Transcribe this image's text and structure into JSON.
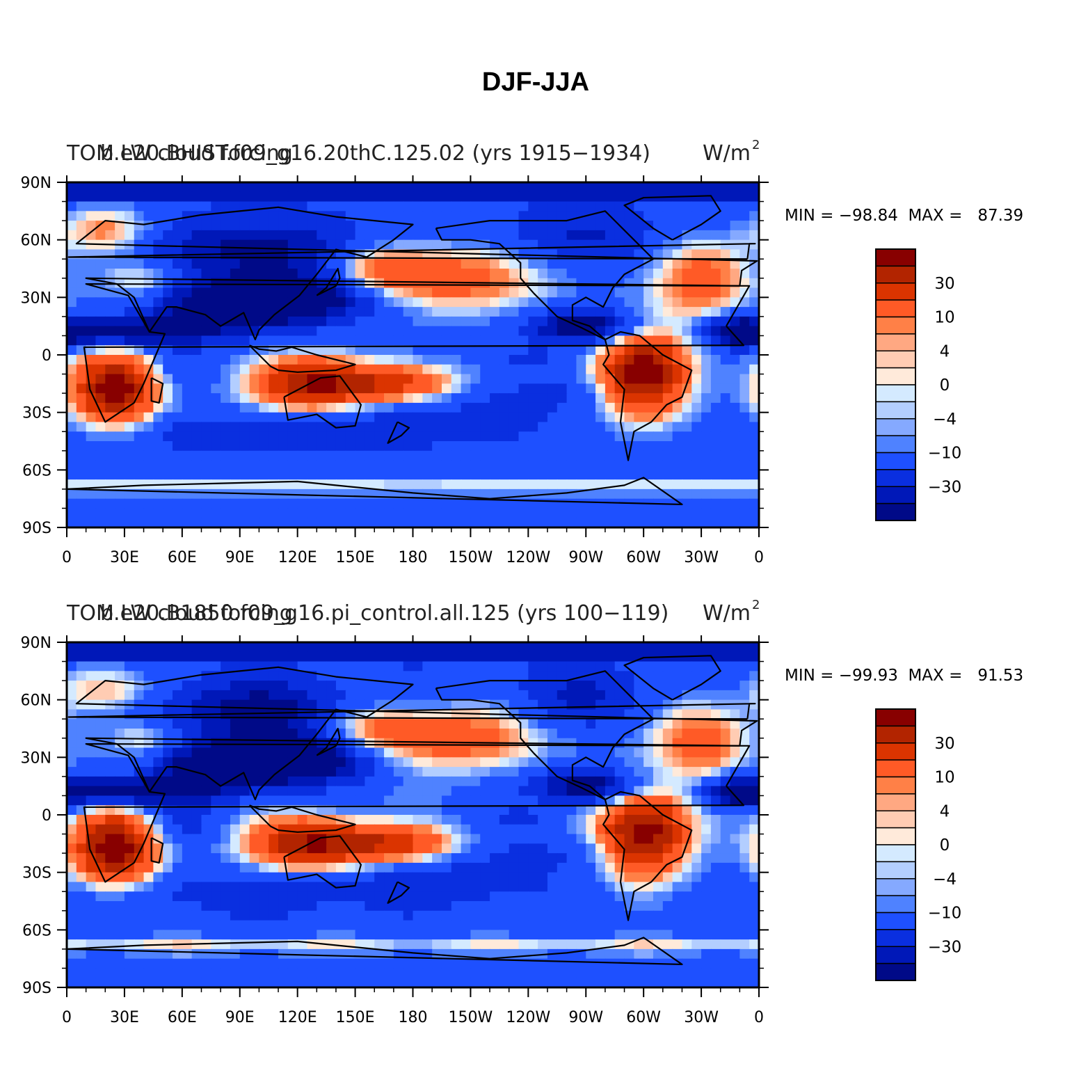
{
  "figure_title": "DJF-JJA",
  "colorbar_labels": [
    "30",
    "10",
    "4",
    "0",
    "−4",
    "−10",
    "−30"
  ],
  "colorbar_colors": [
    "#880000",
    "#B22400",
    "#DB3400",
    "#FF5A26",
    "#FF8047",
    "#FFA882",
    "#FFCCB3",
    "#FFEADA",
    "#D4EAFF",
    "#B3CEFF",
    "#85A9FF",
    "#4F82FF",
    "#1E50FF",
    "#0A2FE0",
    "#0018B8",
    "#000A88"
  ],
  "chart_data": [
    {
      "type": "heatmap",
      "title_left": "b.e20.BHIST.f09_g16.20thC.125.02 (yrs 1915−1934)",
      "title_left_overlap": "TOM LW cloud forcing",
      "units": "W/m",
      "units_superscript": "2",
      "stats": "MIN = −98.84  MAX =   87.39",
      "min": -98.84,
      "max": 87.39,
      "x_ticks": [
        "0",
        "30E",
        "60E",
        "90E",
        "120E",
        "150E",
        "180",
        "150W",
        "120W",
        "90W",
        "60W",
        "30W",
        "0"
      ],
      "y_ticks": [
        "90N",
        "60N",
        "30N",
        "0",
        "30S",
        "60S",
        "90S"
      ],
      "contour_levels": [
        -50,
        -40,
        -30,
        -20,
        -10,
        -6,
        -4,
        -2,
        0,
        2,
        4,
        6,
        10,
        20,
        30,
        40
      ]
    },
    {
      "type": "heatmap",
      "title_left": "b.e20.B1850.f09_g16.pi_control.all.125 (yrs 100−119)",
      "title_left_overlap": "TOM LW cloud forcing",
      "units": "W/m",
      "units_superscript": "2",
      "stats": "MIN = −99.93  MAX =   91.53",
      "min": -99.93,
      "max": 91.53,
      "x_ticks": [
        "0",
        "30E",
        "60E",
        "90E",
        "120E",
        "150E",
        "180",
        "150W",
        "120W",
        "90W",
        "60W",
        "30W",
        "0"
      ],
      "y_ticks": [
        "90N",
        "60N",
        "30N",
        "0",
        "30S",
        "60S",
        "90S"
      ],
      "contour_levels": [
        -50,
        -40,
        -30,
        -20,
        -10,
        -6,
        -4,
        -2,
        0,
        2,
        4,
        6,
        10,
        20,
        30,
        40
      ]
    }
  ]
}
